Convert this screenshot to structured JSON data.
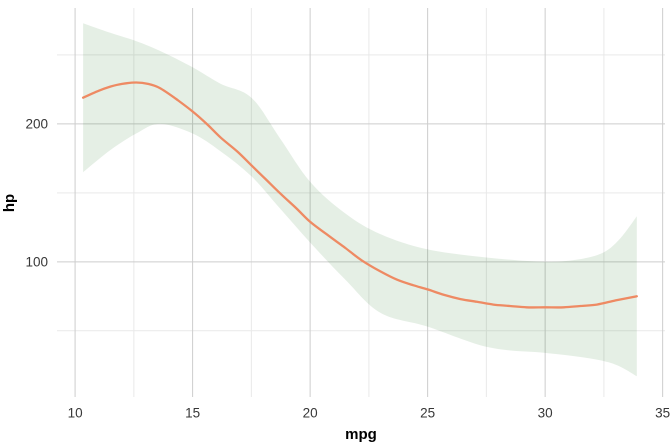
{
  "chart_data": {
    "type": "line",
    "title": "",
    "xlabel": "mpg",
    "ylabel": "hp",
    "x_ticks": [
      10,
      15,
      20,
      25,
      30,
      35
    ],
    "x_minor_ticks": [
      12.5,
      17.5,
      22.5,
      27.5,
      32.5
    ],
    "y_ticks": [
      100,
      200
    ],
    "y_minor_ticks": [
      50,
      150,
      250
    ],
    "xlim": [
      9.23,
      35.1
    ],
    "ylim": [
      2,
      284
    ],
    "grid": "major-and-minor",
    "legend_position": "none",
    "series": [
      {
        "name": "loess-smooth-hp-vs-mpg",
        "color": "#EE8A63",
        "x": [
          10.34,
          11.0,
          11.5,
          12.0,
          12.6,
          13.1,
          13.6,
          14.3,
          15.0,
          15.6,
          16.2,
          16.9,
          17.5,
          18.1,
          18.7,
          19.4,
          20.0,
          20.7,
          21.5,
          22.2,
          23.0,
          23.7,
          24.4,
          25.0,
          25.7,
          26.4,
          27.1,
          27.8,
          28.5,
          29.2,
          30.0,
          30.8,
          31.5,
          32.2,
          33.0,
          33.9
        ],
        "y": [
          219,
          224,
          227,
          229,
          230,
          229,
          226,
          218,
          209,
          200,
          190,
          180,
          170,
          160,
          150,
          139,
          129,
          120,
          110,
          101,
          93,
          87,
          83,
          80,
          76,
          73,
          71,
          69,
          68,
          67,
          67,
          67,
          68,
          69,
          72,
          75
        ]
      }
    ],
    "ribbon": {
      "name": "confidence-band",
      "fill": "#006400",
      "fill_opacity": 0.1,
      "x": [
        10.34,
        11.5,
        12.6,
        13.6,
        15.0,
        16.2,
        17.5,
        18.7,
        20.0,
        21.5,
        23.0,
        25.0,
        27.6,
        30.0,
        31.5,
        32.5,
        33.2,
        33.9
      ],
      "upper": [
        273,
        266,
        260,
        253,
        241,
        229,
        219,
        190,
        158,
        135,
        120,
        109,
        103,
        100,
        102,
        107,
        117,
        133
      ],
      "lower": [
        165,
        181,
        193,
        200,
        193,
        180,
        162,
        139,
        114,
        87,
        63,
        53,
        38,
        34,
        31,
        28,
        24,
        17
      ]
    },
    "colors": {
      "background": "#ffffff",
      "grid_major": "#cdcdcd",
      "grid_minor": "#e9e9e9",
      "tick_text": "#373737",
      "axis_title_text": "#000000"
    }
  }
}
